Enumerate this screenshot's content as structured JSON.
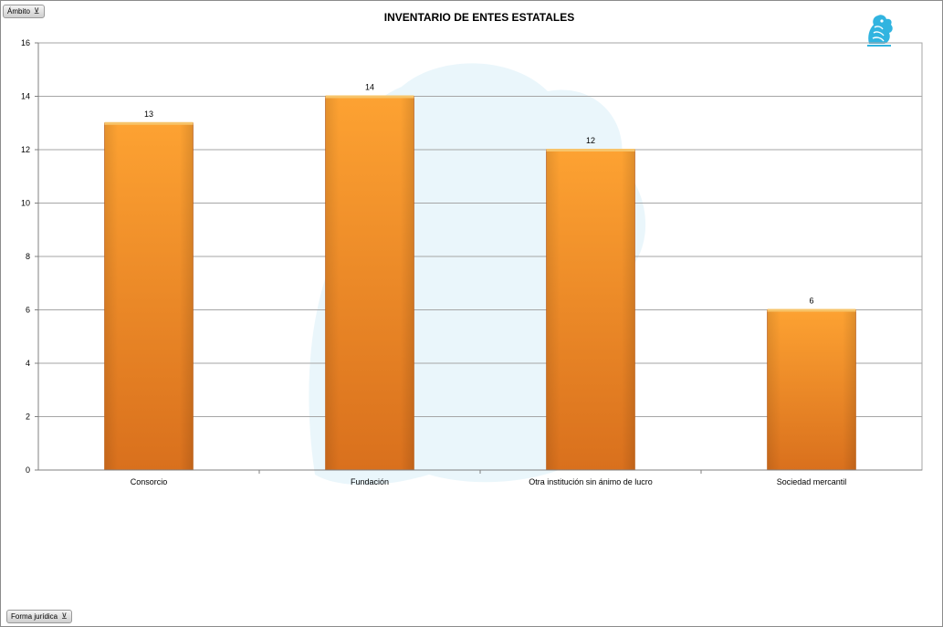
{
  "pivot": {
    "ambito_label": "Ámbito",
    "forma_label": "Forma jurídica"
  },
  "colors": {
    "bar_light": "#fda232",
    "bar_dark": "#d9701d",
    "bar_top": "#f7c46a",
    "grid": "#a6a6a6",
    "watermark": "#d8eef8",
    "logo": "#31b4e0"
  },
  "chart_data": {
    "type": "bar",
    "title": "INVENTARIO DE ENTES ESTATALES",
    "categories": [
      "Consorcio",
      "Fundación",
      "Otra institución sin ánimo de lucro",
      "Sociedad mercantil"
    ],
    "values": [
      13,
      14,
      12,
      6
    ],
    "data_labels": [
      "13",
      "14",
      "12",
      "6"
    ],
    "ylim": [
      0,
      16
    ],
    "yticks": [
      0,
      2,
      4,
      6,
      8,
      10,
      12,
      14,
      16
    ],
    "grid": true,
    "legend": "none"
  }
}
